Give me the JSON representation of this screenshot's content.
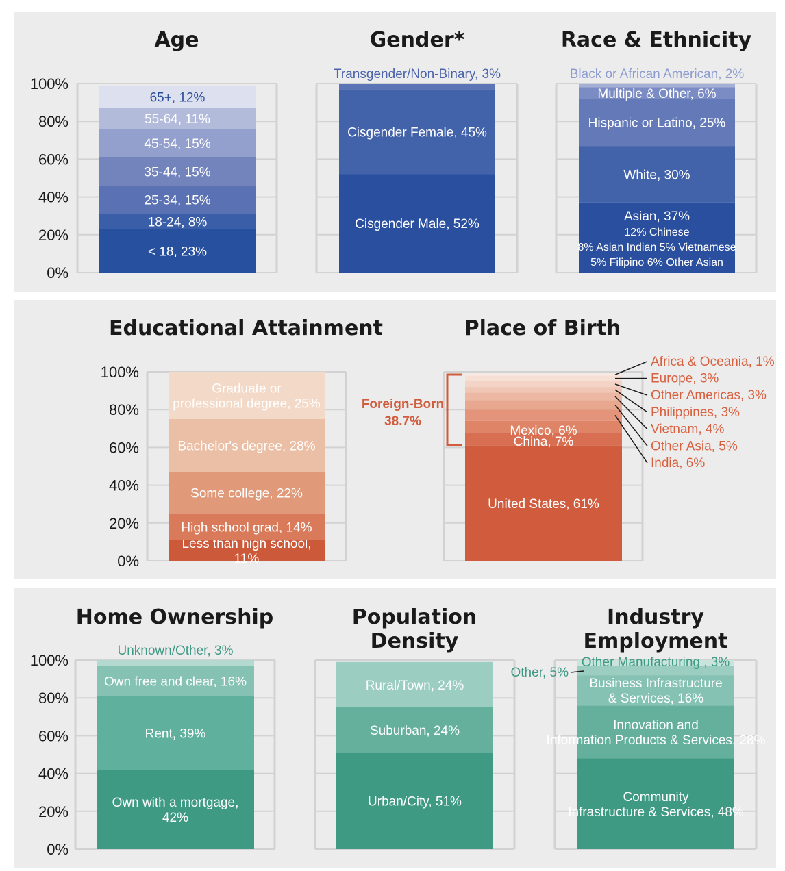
{
  "chart_data": [
    {
      "type": "stacked-bar",
      "title": "Age",
      "ticks": [
        "0%",
        "20%",
        "40%",
        "60%",
        "80%",
        "100%"
      ],
      "segments": [
        {
          "label": "< 18, 23%",
          "value": 23,
          "color": "#27509f",
          "text": "#ffffff"
        },
        {
          "label": "18-24, 8%",
          "value": 8,
          "color": "#3a5ea8",
          "text": "#ffffff"
        },
        {
          "label": "25-34, 15%",
          "value": 15,
          "color": "#5a72b3",
          "text": "#ffffff"
        },
        {
          "label": "35-44, 15%",
          "value": 15,
          "color": "#7384bd",
          "text": "#ffffff"
        },
        {
          "label": "45-54, 15%",
          "value": 15,
          "color": "#939fcc",
          "text": "#ffffff"
        },
        {
          "label": "55-64, 11%",
          "value": 11,
          "color": "#b3bbdb",
          "text": "#ffffff"
        },
        {
          "label": "65+, 12%",
          "value": 12,
          "color": "#dde1ef",
          "text": "#2a4d9b"
        }
      ]
    },
    {
      "type": "stacked-bar",
      "title": "Gender*",
      "segments": [
        {
          "label": "Cisgender Male, 52%",
          "value": 52,
          "color": "#2a4f9e",
          "text": "#ffffff"
        },
        {
          "label": "Cisgender Female, 45%",
          "value": 45,
          "color": "#4262aa",
          "text": "#ffffff"
        },
        {
          "label": "Transgender/Non-Binary, 3%",
          "value": 3,
          "color": "#5b74b5",
          "text": "#4a63ab",
          "outside": true
        }
      ]
    },
    {
      "type": "stacked-bar",
      "title": "Race & Ethnicity",
      "segments": [
        {
          "label": "Asian, 37%",
          "value": 37,
          "color": "#2a4f9e",
          "text": "#ffffff",
          "sublines": [
            "12% Chinese",
            "8% Asian Indian   5% Vietnamese",
            "5% Filipino   6% Other Asian"
          ]
        },
        {
          "label": "White, 30%",
          "value": 30,
          "color": "#4262aa",
          "text": "#ffffff"
        },
        {
          "label": "Hispanic or Latino, 25%",
          "value": 25,
          "color": "#6379b8",
          "text": "#ffffff"
        },
        {
          "label": "Multiple & Other, 6%",
          "value": 6,
          "color": "#7a8cc3",
          "text": "#ffffff"
        },
        {
          "label": "Black or African American, 2%",
          "value": 2,
          "color": "#a3afd6",
          "text": "#8d9cd0",
          "outside": true
        }
      ]
    },
    {
      "type": "stacked-bar",
      "title": "Educational Attainment",
      "ticks": [
        "0%",
        "20%",
        "40%",
        "60%",
        "80%",
        "100%"
      ],
      "segments": [
        {
          "label": "Less than high school, 11%",
          "value": 11,
          "color": "#cc5a3a",
          "text": "#ffffff"
        },
        {
          "label": "High school grad, 14%",
          "value": 14,
          "color": "#d97a5a",
          "text": "#ffffff"
        },
        {
          "label": "Some college, 22%",
          "value": 22,
          "color": "#e09a7a",
          "text": "#ffffff"
        },
        {
          "label": "Bachelor's degree, 28%",
          "value": 28,
          "color": "#ebbfa5",
          "text": "#ffffff"
        },
        {
          "label": "Graduate or professional degree, 25%",
          "value": 25,
          "color": "#f3d9c8",
          "text": "#ffffff"
        }
      ]
    },
    {
      "type": "stacked-bar",
      "title": "Place of Birth",
      "annotation": "Foreign-Born",
      "annotation_value": "38.7%",
      "segments": [
        {
          "label": "United States, 61%",
          "value": 61,
          "color": "#d05c3d",
          "text": "#ffffff"
        },
        {
          "label": "China, 7%",
          "value": 7,
          "color": "#d96f52",
          "text": "#ffffff"
        },
        {
          "label": "Mexico, 6%",
          "value": 6,
          "color": "#df8466",
          "text": "#ffffff"
        },
        {
          "label": "India, 6%",
          "value": 6,
          "color": "#e3947a",
          "text": "#d9603f",
          "outside": true
        },
        {
          "label": "Other Asia, 5%",
          "value": 5,
          "color": "#e8a78f",
          "text": "#d9603f",
          "outside": true
        },
        {
          "label": "Vietnam, 4%",
          "value": 4,
          "color": "#ecb7a3",
          "text": "#d9603f",
          "outside": true
        },
        {
          "label": "Philippines, 3%",
          "value": 3,
          "color": "#f0c6b5",
          "text": "#d9603f",
          "outside": true
        },
        {
          "label": "Other Americas, 3%",
          "value": 3,
          "color": "#f3d3c5",
          "text": "#d9603f",
          "outside": true
        },
        {
          "label": "Europe, 3%",
          "value": 3,
          "color": "#f6dfd4",
          "text": "#d9603f",
          "outside": true
        },
        {
          "label": "Africa & Oceania, 1%",
          "value": 1,
          "color": "#f9e9e1",
          "text": "#d9603f",
          "outside": true
        }
      ]
    },
    {
      "type": "stacked-bar",
      "title": "Home Ownership",
      "ticks": [
        "0%",
        "20%",
        "40%",
        "60%",
        "80%",
        "100%"
      ],
      "segments": [
        {
          "label": "Own with a mortgage, 42%",
          "value": 42,
          "color": "#3f9a84",
          "text": "#ffffff"
        },
        {
          "label": "Rent, 39%",
          "value": 39,
          "color": "#5fb09c",
          "text": "#ffffff"
        },
        {
          "label": "Own free and clear, 16%",
          "value": 16,
          "color": "#86c2b3",
          "text": "#ffffff"
        },
        {
          "label": "Unknown/Other, 3%",
          "value": 3,
          "color": "#b4d9cf",
          "text": "#3f9a84",
          "outside": true
        }
      ]
    },
    {
      "type": "stacked-bar",
      "title": "Population Density",
      "segments": [
        {
          "label": "Urban/City, 51%",
          "value": 51,
          "color": "#3f9a84",
          "text": "#ffffff"
        },
        {
          "label": "Suburban, 24%",
          "value": 24,
          "color": "#64b09d",
          "text": "#ffffff"
        },
        {
          "label": "Rural/Town, 24%",
          "value": 24,
          "color": "#9bcdc1",
          "text": "#ffffff"
        }
      ]
    },
    {
      "type": "stacked-bar",
      "title": "Industry Employment",
      "segments": [
        {
          "label": "Community Infrastructure & Services, 48%",
          "value": 48,
          "color": "#3f9a84",
          "text": "#ffffff"
        },
        {
          "label": "Innovation and Information Products & Services, 28%",
          "value": 28,
          "color": "#64b09d",
          "text": "#ffffff"
        },
        {
          "label": "Business Infrastructure & Services, 16%",
          "value": 16,
          "color": "#86c2b3",
          "text": "#ffffff"
        },
        {
          "label": "Other, 5%",
          "value": 5,
          "color": "#9ccdc1",
          "text": "#3f9a84",
          "outside": true
        },
        {
          "label": "Other Manufacturing , 3%",
          "value": 3,
          "color": "#c8e4dc",
          "text": "#3f9a84",
          "outside": true
        }
      ]
    }
  ]
}
